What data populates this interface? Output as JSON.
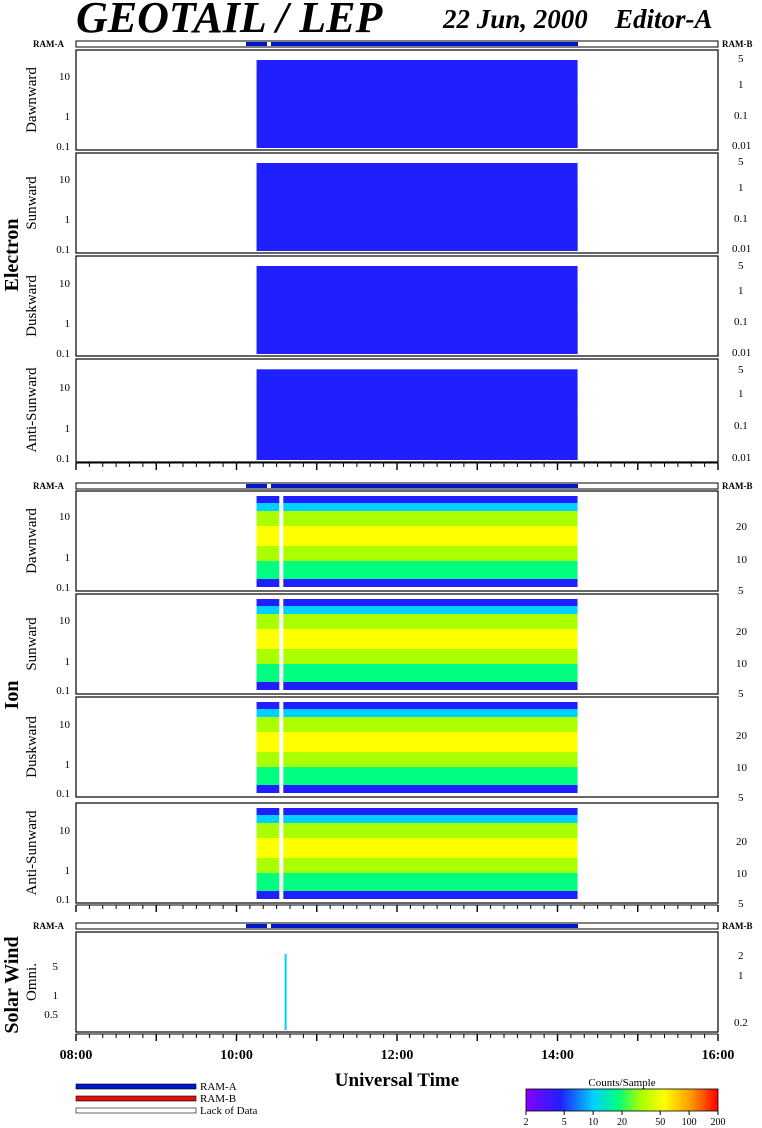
{
  "header": {
    "title": "GEOTAIL / LEP",
    "date": "22 Jun, 2000",
    "editor": "Editor-A"
  },
  "ram_labels": {
    "left": "RAM-A",
    "right": "RAM-B"
  },
  "colors": {
    "ram_a": "#0018c8",
    "ram_b": "#e01010",
    "lack_of_data": "#ffffff",
    "colormap": [
      "#8800ff",
      "#2020ff",
      "#00d0ff",
      "#00ff80",
      "#aaff00",
      "#ffff00",
      "#ff9900",
      "#ff0000"
    ]
  },
  "chart_data": {
    "type": "heatmap",
    "xlabel": "Universal Time",
    "x_range": [
      "08:00",
      "16:00"
    ],
    "x_ticks": [
      "08:00",
      "10:00",
      "12:00",
      "14:00",
      "16:00"
    ],
    "data_coverage": [
      "10:15",
      "14:15"
    ],
    "groups": [
      {
        "name": "Electron",
        "panels": [
          {
            "label": "Dawnward",
            "left_ticks": [
              "10",
              "1",
              "0.1"
            ],
            "right_ticks": [
              "5",
              "1",
              "0.1",
              "0.01"
            ]
          },
          {
            "label": "Sunward",
            "left_ticks": [
              "10",
              "1",
              "0.1"
            ],
            "right_ticks": [
              "5",
              "1",
              "0.1",
              "0.01"
            ]
          },
          {
            "label": "Duskward",
            "left_ticks": [
              "10",
              "1",
              "0.1"
            ],
            "right_ticks": [
              "5",
              "1",
              "0.1",
              "0.01"
            ]
          },
          {
            "label": "Anti-Sunward",
            "left_ticks": [
              "10",
              "1",
              "0.1"
            ],
            "right_ticks": [
              "5",
              "1",
              "0.1",
              "0.01"
            ]
          }
        ]
      },
      {
        "name": "Ion",
        "panels": [
          {
            "label": "Dawnward",
            "left_ticks": [
              "10",
              "1",
              "0.1"
            ],
            "right_ticks": [
              "20",
              "10",
              "5"
            ]
          },
          {
            "label": "Sunward",
            "left_ticks": [
              "10",
              "1",
              "0.1"
            ],
            "right_ticks": [
              "20",
              "10",
              "5"
            ]
          },
          {
            "label": "Duskward",
            "left_ticks": [
              "10",
              "1",
              "0.1"
            ],
            "right_ticks": [
              "20",
              "10",
              "5"
            ]
          },
          {
            "label": "Anti-Sunward",
            "left_ticks": [
              "10",
              "1",
              "0.1"
            ],
            "right_ticks": [
              "20",
              "10",
              "5"
            ]
          }
        ]
      },
      {
        "name": "Solar Wind",
        "panels": [
          {
            "label": "Omni.",
            "left_ticks": [
              "5",
              "1",
              "0.5"
            ],
            "right_ticks": [
              "2",
              "1",
              "0.2"
            ]
          }
        ]
      }
    ],
    "colorbar": {
      "title": "Counts/Sample",
      "ticks": [
        "2",
        "5",
        "10",
        "20",
        "50",
        "100",
        "200"
      ]
    },
    "legend": [
      {
        "label": "RAM-A"
      },
      {
        "label": "RAM-B"
      },
      {
        "label": "Lack of Data"
      }
    ]
  }
}
